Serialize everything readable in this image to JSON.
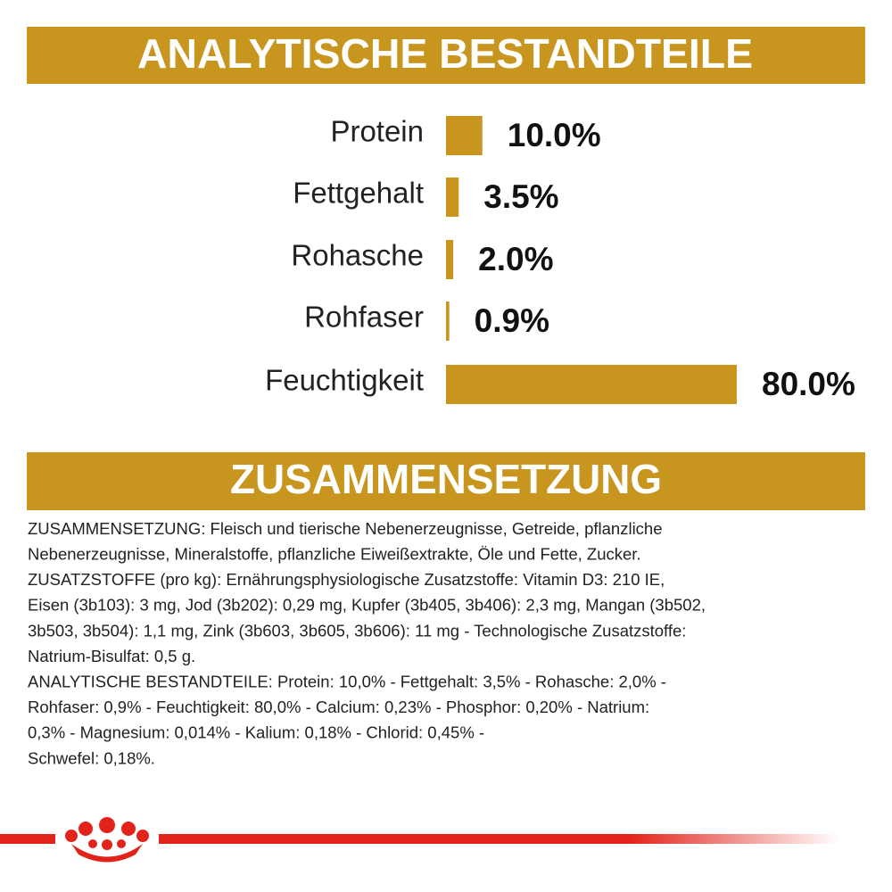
{
  "header_top": "ANALYTISCHE BESTANDTEILE",
  "chart_data": {
    "type": "bar",
    "orientation": "horizontal",
    "categories": [
      "Protein",
      "Fettgehalt",
      "Rohasche",
      "Rohfaser",
      "Feuchtigkeit"
    ],
    "values": [
      10.0,
      3.5,
      2.0,
      0.9,
      80.0
    ],
    "value_labels": [
      "10.0%",
      "3.5%",
      "2.0%",
      "0.9%",
      "80.0%"
    ],
    "color": "#c8961e"
  },
  "header_bottom": "ZUSAMMENSETZUNG",
  "composition": [
    "ZUSAMMENSETZUNG: Fleisch und tierische Nebenerzeugnisse, Getreide, pflanzliche",
    "Nebenerzeugnisse, Mineralstoffe, pflanzliche Eiweißextrakte, Öle und Fette, Zucker.",
    "ZUSATZSTOFFE (pro kg): Ernährungsphysiologische Zusatzstoffe: Vitamin D3: 210 IE,",
    "Eisen (3b103): 3 mg, Jod (3b202): 0,29 mg, Kupfer (3b405, 3b406): 2,3 mg, Mangan (3b502,",
    "3b503, 3b504): 1,1 mg, Zink (3b603, 3b605, 3b606): 11 mg - Technologische Zusatzstoffe:",
    "Natrium-Bisulfat: 0,5 g.",
    "ANALYTISCHE BESTANDTEILE: Protein: 10,0% - Fettgehalt: 3,5% - Rohasche: 2,0% -",
    "Rohfaser: 0,9% - Feuchtigkeit: 80,0% - Calcium: 0,23% - Phosphor: 0,20% - Natrium:",
    "0,3% - Magnesium: 0,014% - Kalium: 0,18% - Chlorid: 0,45% -",
    "Schwefel: 0,18%."
  ]
}
